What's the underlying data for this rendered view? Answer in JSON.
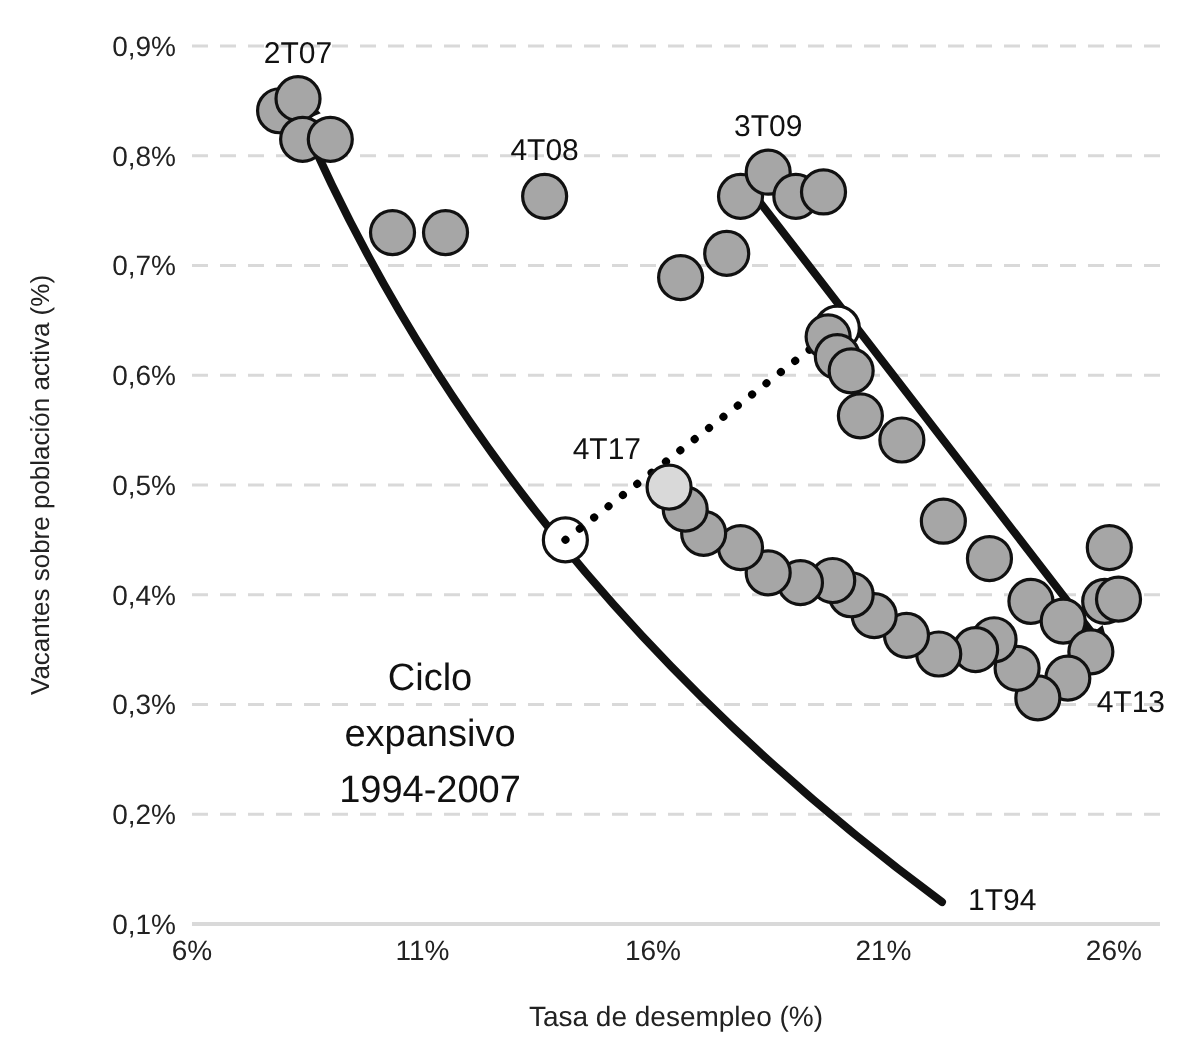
{
  "chart_data": {
    "type": "scatter",
    "xlabel": "Tasa de desempleo  (%)",
    "ylabel": "Vacantes  sobre población activa  (%)",
    "xlim": [
      6,
      27
    ],
    "xticks": [
      {
        "value": 6,
        "label": "6%"
      },
      {
        "value": 11,
        "label": "11%"
      },
      {
        "value": 16,
        "label": "16%"
      },
      {
        "value": 21,
        "label": "21%"
      },
      {
        "value": 26,
        "label": "26%"
      }
    ],
    "ylim": [
      0.1,
      0.9
    ],
    "yticks": [
      {
        "value": 0.1,
        "label": "0,1%"
      },
      {
        "value": 0.2,
        "label": "0,2%"
      },
      {
        "value": 0.3,
        "label": "0,3%"
      },
      {
        "value": 0.4,
        "label": "0,4%"
      },
      {
        "value": 0.5,
        "label": "0,5%"
      },
      {
        "value": 0.6,
        "label": "0,6%"
      },
      {
        "value": 0.7,
        "label": "0,7%"
      },
      {
        "value": 0.8,
        "label": "0,8%"
      },
      {
        "value": 0.9,
        "label": "0,9%"
      }
    ],
    "grid": "y",
    "marker": "circle",
    "series": [
      {
        "color": "#ffffff",
        "x": [
          20.0,
          14.1
        ],
        "values": [
          0.643,
          0.45
        ]
      },
      {
        "type": "line",
        "line_style": "dotted",
        "marker": "none",
        "color": "#000000",
        "x": [
          14.1,
          20.0
        ],
        "values": [
          0.45,
          0.643
        ]
      },
      {
        "color": "#a6a6a6",
        "x": [
          7.9,
          8.3,
          8.4,
          9.0,
          10.35,
          11.5,
          13.65,
          16.6,
          17.6,
          17.9,
          18.5,
          19.1,
          19.7,
          19.8,
          20.0,
          20.3,
          20.5,
          21.4,
          22.3,
          23.3,
          24.2,
          24.9,
          25.9,
          25.8,
          26.1,
          25.5,
          25.0,
          24.35,
          23.9,
          23.4,
          23.0,
          22.2,
          21.5,
          20.8,
          20.3,
          19.9,
          19.2,
          18.5,
          17.9,
          17.1,
          16.7
        ],
        "values": [
          0.841,
          0.852,
          0.815,
          0.815,
          0.73,
          0.73,
          0.763,
          0.689,
          0.711,
          0.763,
          0.785,
          0.763,
          0.767,
          0.635,
          0.617,
          0.604,
          0.563,
          0.541,
          0.467,
          0.433,
          0.394,
          0.376,
          0.443,
          0.394,
          0.396,
          0.348,
          0.324,
          0.306,
          0.333,
          0.359,
          0.35,
          0.346,
          0.363,
          0.381,
          0.4,
          0.413,
          0.411,
          0.42,
          0.443,
          0.456,
          0.478
        ]
      },
      {
        "color": "#d9d9d9",
        "x": [
          16.35
        ],
        "values": [
          0.498
        ]
      }
    ],
    "annotations": [
      {
        "text": "2T07",
        "x": 8.3,
        "y": 0.852
      },
      {
        "text": "4T08",
        "x": 13.65,
        "y": 0.763
      },
      {
        "text": "3T09",
        "x": 18.5,
        "y": 0.785
      },
      {
        "text": "4T17",
        "x": 16.35,
        "y": 0.498
      },
      {
        "text": "4T13",
        "x": 25.5,
        "y": 0.348
      },
      "1T94",
      "Ciclo expansivo 1994-2007"
    ]
  }
}
